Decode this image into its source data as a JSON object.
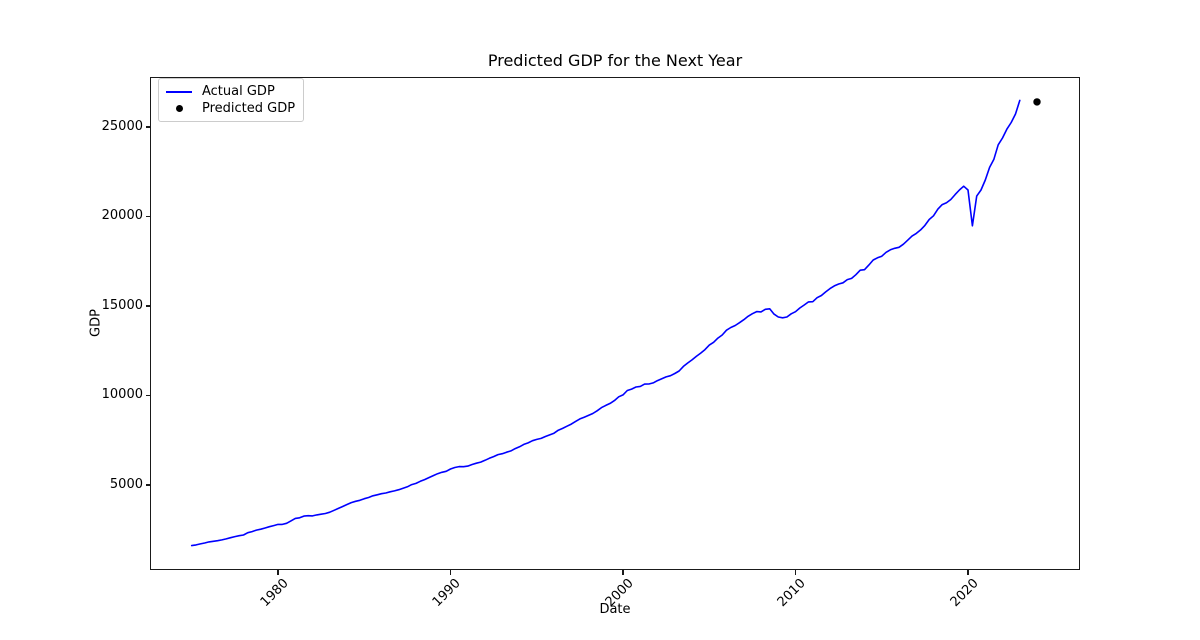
{
  "figure": {
    "background": "#ffffff"
  },
  "chart_data": {
    "type": "line",
    "title": "Predicted GDP for the Next Year",
    "xlabel": "Date",
    "ylabel": "GDP",
    "xlim": [
      1972.58,
      2026.49
    ],
    "ylim": [
      251,
      27793
    ],
    "xticks": [
      1980,
      1990,
      2000,
      2010,
      2020
    ],
    "xtick_labels": [
      "1980",
      "1990",
      "2000",
      "2010",
      "2020"
    ],
    "yticks": [
      5000,
      10000,
      15000,
      20000,
      25000
    ],
    "ytick_labels": [
      "5000",
      "10000",
      "15000",
      "20000",
      "25000"
    ],
    "grid": false,
    "legend_position": "upper left",
    "series": [
      {
        "name": "Actual GDP",
        "type": "line",
        "color": "#0000ff",
        "x_start_year": 1975.0,
        "x_step_years": 0.25,
        "values": [
          1616.1,
          1651.9,
          1709.8,
          1761.1,
          1820.5,
          1852.3,
          1886.6,
          1934.3,
          1988.6,
          2055.9,
          2118.5,
          2168.7,
          2208.8,
          2336.6,
          2398.9,
          2482.2,
          2531.6,
          2595.9,
          2670.4,
          2730.7,
          2796.5,
          2799.9,
          2860.0,
          2993.5,
          3131.8,
          3167.3,
          3261.2,
          3283.5,
          3273.8,
          3331.3,
          3367.1,
          3407.8,
          3480.3,
          3583.8,
          3692.3,
          3796.1,
          3912.8,
          4015.0,
          4087.4,
          4147.6,
          4237.0,
          4302.3,
          4394.6,
          4453.1,
          4516.3,
          4555.2,
          4619.6,
          4669.4,
          4736.2,
          4821.5,
          4900.5,
          5022.7,
          5090.6,
          5207.7,
          5299.5,
          5412.7,
          5527.4,
          5628.4,
          5711.6,
          5763.4,
          5890.8,
          5974.7,
          6029.5,
          6023.3,
          6054.9,
          6143.6,
          6218.4,
          6279.3,
          6380.8,
          6492.3,
          6586.5,
          6697.6,
          6748.2,
          6829.6,
          6904.2,
          7032.8,
          7136.3,
          7269.8,
          7352.3,
          7476.7,
          7545.3,
          7604.9,
          7706.5,
          7799.5,
          7893.1,
          8061.5,
          8159.0,
          8287.1,
          8402.1,
          8551.9,
          8691.8,
          8788.3,
          8889.7,
          8994.7,
          9146.5,
          9325.7,
          9447.1,
          9557.0,
          9712.3,
          9926.1,
          10031.0,
          10278.3,
          10357.4,
          10472.3,
          10508.1,
          10638.4,
          10639.5,
          10701.3,
          10834.4,
          10934.8,
          11037.1,
          11103.8,
          11230.1,
          11370.7,
          11625.1,
          11816.8,
          11988.4,
          12181.4,
          12367.7,
          12562.2,
          12813.7,
          12974.1,
          13205.4,
          13381.6,
          13648.9,
          13799.8,
          13908.5,
          14066.4,
          14233.2,
          14422.3,
          14569.7,
          14685.3,
          14668.4,
          14813.0,
          14843.0,
          14549.9,
          14383.9,
          14340.4,
          14384.1,
          14566.5,
          14681.1,
          14888.6,
          15057.7,
          15230.2,
          15238.4,
          15460.9,
          15587.1,
          15785.3,
          15973.9,
          16121.9,
          16227.9,
          16297.3,
          16475.4,
          16541.4,
          16749.3,
          16999.9,
          17025.2,
          17285.6,
          17569.4,
          17692.2,
          17783.6,
          17998.3,
          18141.9,
          18222.8,
          18281.6,
          18450.1,
          18675.3,
          18905.5,
          19057.7,
          19250.0,
          19500.6,
          19831.8,
          20041.0,
          20411.9,
          20663.0,
          20766.1,
          20951.1,
          21224.4,
          21481.4,
          21694.5,
          21481.4,
          19477.4,
          21138.6,
          21477.6,
          22038.2,
          22740.9,
          23202.3,
          24002.8,
          24386.7,
          24883.0,
          25248.5,
          25723.9,
          26486.3
        ]
      },
      {
        "name": "Predicted GDP",
        "type": "scatter",
        "color": "#000000",
        "points": [
          {
            "x": 2024.0,
            "y": 26400
          }
        ]
      }
    ]
  }
}
